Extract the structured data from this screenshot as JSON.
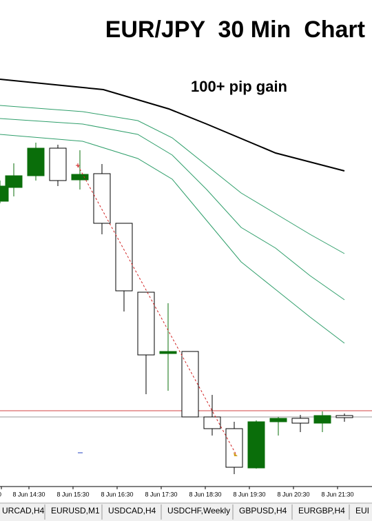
{
  "header": {
    "title": "EUR/JPY  30 Min  Chart",
    "annotation": "100+ pip gain"
  },
  "time_axis": {
    "labels": [
      "0",
      "8 Jun 14:30",
      "8 Jun 15:30",
      "8 Jun 16:30",
      "8 Jun 17:30",
      "8 Jun 18:30",
      "8 Jun 19:30",
      "8 Jun 20:30",
      "8 Jun 21:30"
    ]
  },
  "tabs": [
    "URCAD,H4",
    "EURUSD,M1",
    "USDCAD,H4",
    "USDCHF,Weekly",
    "GBPUSD,H4",
    "EURGBP,H4",
    "EUI"
  ]
}
